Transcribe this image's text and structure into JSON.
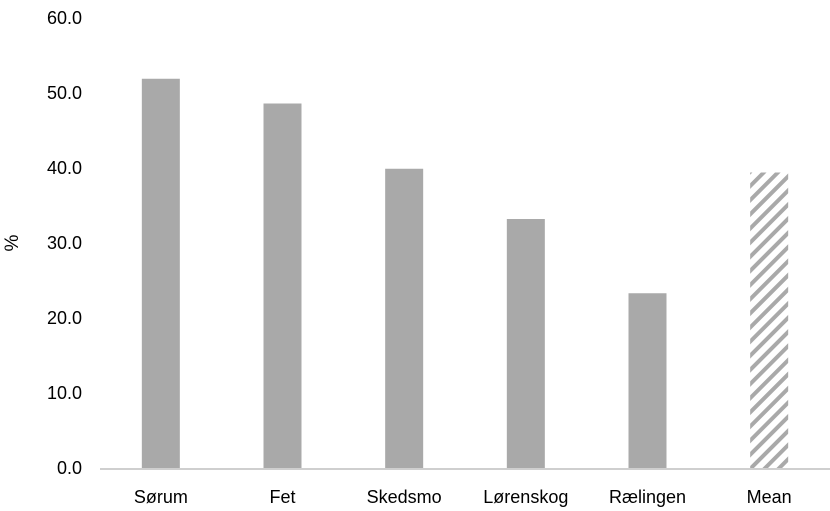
{
  "chart_data": {
    "type": "bar",
    "categories": [
      "Sørum",
      "Fet",
      "Skedsmo",
      "Lørenskog",
      "Rælingen",
      "Mean"
    ],
    "values": [
      51.9,
      48.6,
      39.9,
      33.2,
      23.3,
      39.4
    ],
    "ylabel": "%",
    "ylim": [
      0,
      60
    ],
    "yticks": [
      "0.0",
      "10.0",
      "20.0",
      "30.0",
      "40.0",
      "50.0",
      "60.0"
    ],
    "grid": false,
    "legend": "none",
    "highlight_category": "Mean",
    "colors": {
      "bar": "#a9a9a9",
      "mean_hatch": "#a9a9a9",
      "mean_background": "#ffffff",
      "axis": "#bfbfbf",
      "text": "#000000"
    }
  }
}
